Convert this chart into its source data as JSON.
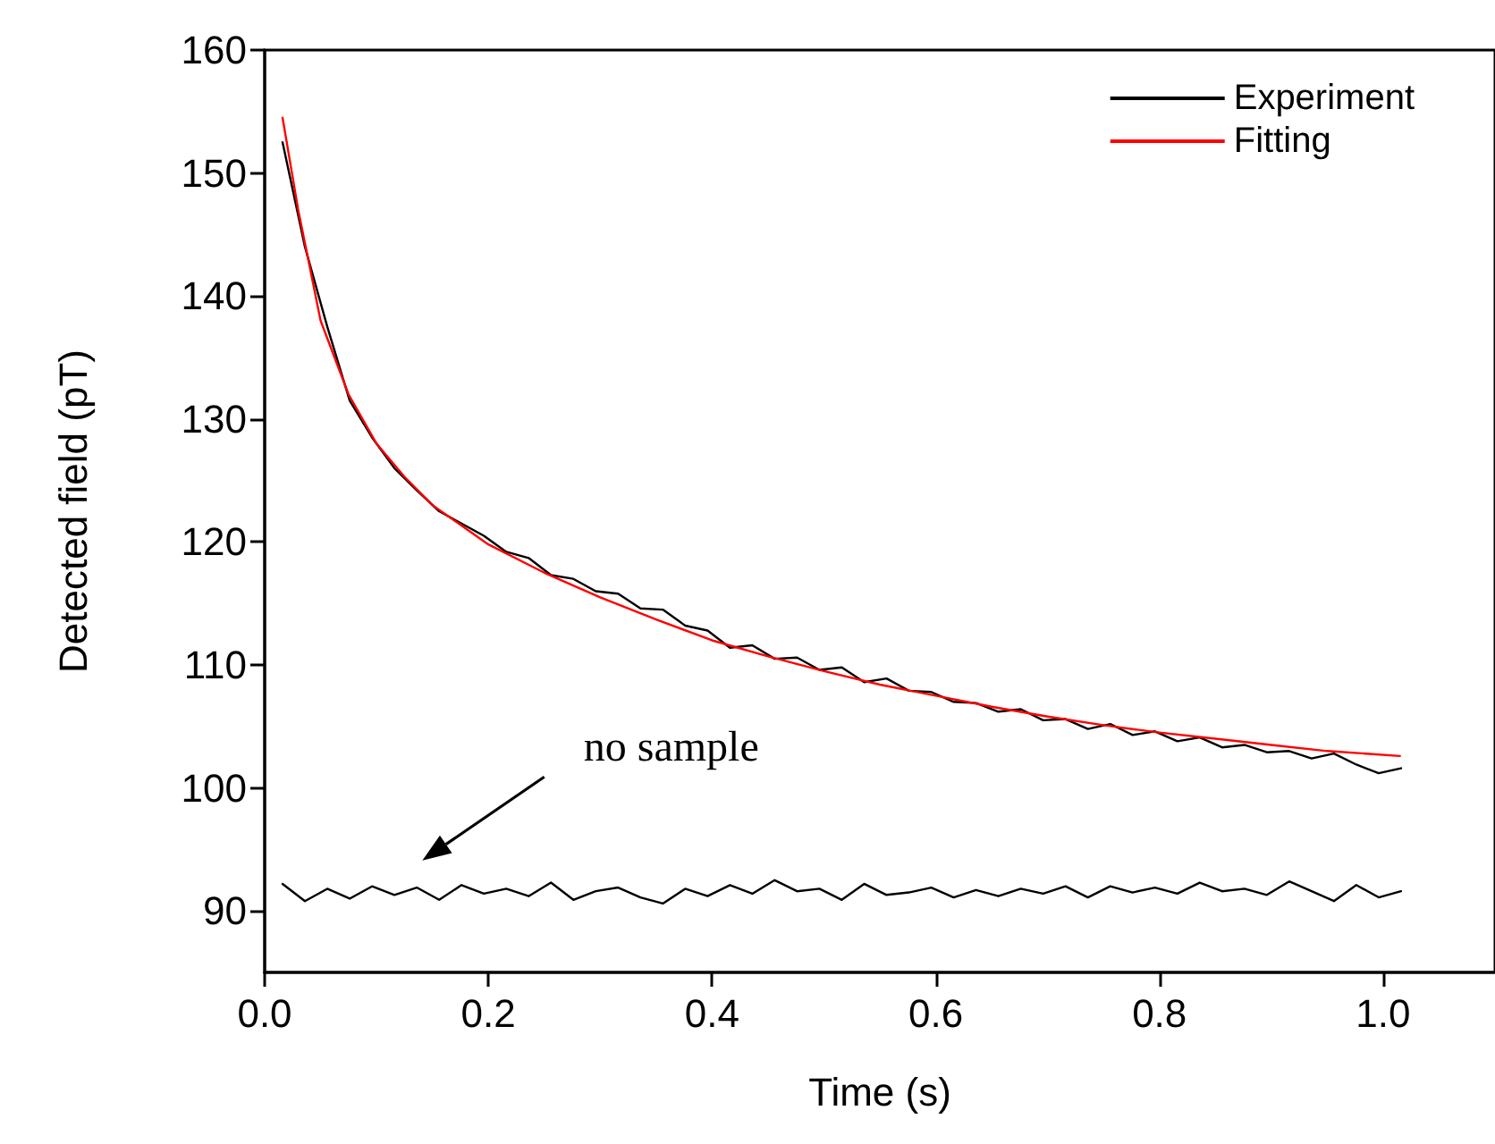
{
  "chart_data": {
    "type": "line",
    "xlabel": "Time (s)",
    "ylabel": "Detected field (pT)",
    "x": [
      0.016,
      0.036,
      0.056,
      0.076,
      0.096,
      0.116,
      0.136,
      0.156,
      0.176,
      0.196,
      0.216,
      0.236,
      0.256,
      0.276,
      0.296,
      0.316,
      0.336,
      0.356,
      0.376,
      0.396,
      0.416,
      0.436,
      0.456,
      0.476,
      0.496,
      0.516,
      0.536,
      0.556,
      0.576,
      0.596,
      0.616,
      0.636,
      0.656,
      0.676,
      0.696,
      0.716,
      0.736,
      0.756,
      0.776,
      0.796,
      0.816,
      0.836,
      0.856,
      0.876,
      0.896,
      0.916,
      0.936,
      0.956,
      0.976,
      0.996,
      1.016
    ],
    "series": [
      {
        "name": "Experiment",
        "color": "#000000",
        "values": [
          152.5,
          144,
          137.5,
          131.5,
          128.5,
          126,
          124.2,
          122.5,
          121.5,
          120.5,
          119.2,
          118.7,
          117.3,
          117,
          116,
          115.8,
          114.6,
          114.5,
          113.2,
          112.8,
          111.4,
          111.6,
          110.5,
          110.6,
          109.6,
          109.8,
          108.6,
          108.9,
          107.9,
          107.8,
          107,
          106.9,
          106.2,
          106.4,
          105.5,
          105.6,
          104.8,
          105.2,
          104.3,
          104.6,
          103.8,
          104.1,
          103.3,
          103.5,
          102.9,
          103,
          102.4,
          102.8,
          101.9,
          101.2,
          101.6
        ]
      },
      {
        "name": "Fitting",
        "color": "#ff0000",
        "x": [
          0.016,
          0.03,
          0.05,
          0.075,
          0.1,
          0.125,
          0.15,
          0.2,
          0.25,
          0.3,
          0.35,
          0.4,
          0.45,
          0.5,
          0.55,
          0.6,
          0.65,
          0.7,
          0.75,
          0.8,
          0.85,
          0.9,
          0.95,
          1.015
        ],
        "values": [
          154.5,
          147,
          138,
          132,
          128,
          125.3,
          123,
          119.8,
          117.5,
          115.5,
          113.7,
          112,
          110.7,
          109.5,
          108.4,
          107.5,
          106.6,
          105.8,
          105.1,
          104.5,
          104,
          103.5,
          103,
          102.6
        ]
      },
      {
        "color": "#000000",
        "values": [
          92.2,
          90.8,
          91.8,
          91,
          92,
          91.3,
          91.9,
          90.9,
          92.1,
          91.4,
          91.8,
          91.2,
          92.3,
          90.9,
          91.6,
          91.9,
          91.1,
          90.6,
          91.8,
          91.2,
          92.1,
          91.4,
          92.5,
          91.6,
          91.8,
          90.9,
          92.2,
          91.3,
          91.5,
          91.9,
          91.1,
          91.7,
          91.2,
          91.8,
          91.4,
          92,
          91.1,
          92,
          91.5,
          91.9,
          91.4,
          92.3,
          91.6,
          91.8,
          91.3,
          92.4,
          91.6,
          90.8,
          92.1,
          91.1,
          91.6
        ]
      }
    ],
    "annotations": [
      "no sample"
    ],
    "xlim": [
      0,
      1.1
    ],
    "xticks": [
      {
        "value": 0,
        "label": "0.0"
      },
      0.2,
      0.4,
      0.6,
      0.8,
      {
        "value": 1,
        "label": "1.0"
      }
    ],
    "ylim": [
      85,
      160
    ],
    "yticks": [
      90,
      100,
      110,
      120,
      130,
      140,
      150,
      160
    ],
    "grid": false,
    "legend": "top right",
    "marker": "none",
    "line_style": "solid"
  }
}
